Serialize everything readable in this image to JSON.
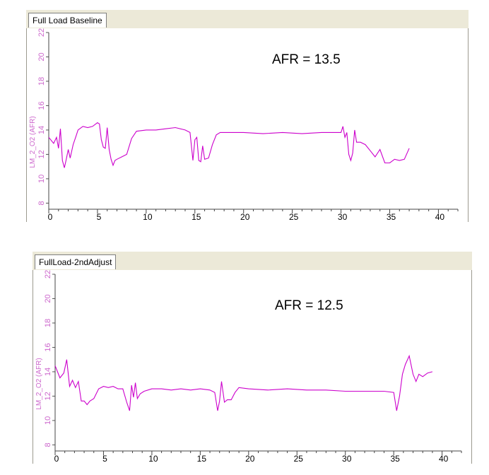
{
  "chart_data": [
    {
      "type": "line",
      "tab_label": "Full Load Baseline",
      "ylabel": "LM_2_O2 (AFR)",
      "annotation": "AFR = 13.5",
      "xlim": [
        0,
        42
      ],
      "ylim": [
        7.5,
        22
      ],
      "xticks": [
        "0",
        "5",
        "10",
        "15",
        "20",
        "25",
        "30",
        "35",
        "40"
      ],
      "yticks": [
        "8",
        "10",
        "12",
        "14",
        "16",
        "18",
        "20",
        "22"
      ],
      "grid": false,
      "line_color": "#cc00cc",
      "series": [
        {
          "x": [
            0,
            0.5,
            0.8,
            1.0,
            1.2,
            1.4,
            1.6,
            1.8,
            2.0,
            2.2,
            2.5,
            2.8,
            3.0,
            3.5,
            4.0,
            4.5,
            5.0,
            5.2,
            5.4,
            5.6,
            5.8,
            6.0,
            6.2,
            6.4,
            6.6,
            6.8,
            7.0,
            7.5,
            8.0,
            8.5,
            9.0,
            10.0,
            11.0,
            12.0,
            13.0,
            14.0,
            14.5,
            14.8,
            15.0,
            15.2,
            15.4,
            15.6,
            15.8,
            16.0,
            16.4,
            16.8,
            17.2,
            17.6,
            18.0,
            20.0,
            22.0,
            24.0,
            26.0,
            28.0,
            29.5,
            30.0,
            30.2,
            30.4,
            30.6,
            30.8,
            31.0,
            31.2,
            31.4,
            31.6,
            32.0,
            32.5,
            33.0,
            33.5,
            34.0,
            34.5,
            35.0,
            35.5,
            36.0,
            36.5,
            37.0
          ],
          "y": [
            13.4,
            12.9,
            13.4,
            12.5,
            14.1,
            11.5,
            10.9,
            11.6,
            12.4,
            11.7,
            12.8,
            13.5,
            14.0,
            14.3,
            14.2,
            14.3,
            14.6,
            14.5,
            13.2,
            12.6,
            12.5,
            14.2,
            12.4,
            11.6,
            11.1,
            11.5,
            11.6,
            11.8,
            12.0,
            13.3,
            13.9,
            14.0,
            14.0,
            14.1,
            14.2,
            14.0,
            13.8,
            11.5,
            13.2,
            13.4,
            11.5,
            11.4,
            12.7,
            11.6,
            11.7,
            12.8,
            13.6,
            13.8,
            13.8,
            13.8,
            13.7,
            13.8,
            13.7,
            13.8,
            13.8,
            13.8,
            14.3,
            13.4,
            13.8,
            12.0,
            11.5,
            12.1,
            14.0,
            13.0,
            13.0,
            12.8,
            12.3,
            11.8,
            12.4,
            11.3,
            11.3,
            11.6,
            11.5,
            11.6,
            12.5
          ]
        }
      ]
    },
    {
      "type": "line",
      "tab_label": "FullLoad-2ndAdjust",
      "ylabel": "LM_2_O2 (AFR)",
      "annotation": "AFR = 12.5",
      "xlim": [
        0,
        42
      ],
      "ylim": [
        7.5,
        22
      ],
      "xticks": [
        "0",
        "5",
        "10",
        "15",
        "20",
        "25",
        "30",
        "35",
        "40"
      ],
      "yticks": [
        "8",
        "10",
        "12",
        "14",
        "16",
        "18",
        "20",
        "22"
      ],
      "grid": false,
      "line_color": "#cc00cc",
      "series": [
        {
          "x": [
            0,
            0.5,
            0.9,
            1.2,
            1.5,
            1.8,
            2.1,
            2.4,
            2.7,
            3.0,
            3.3,
            3.6,
            4.0,
            4.5,
            5.0,
            5.5,
            6.0,
            6.5,
            7.0,
            7.4,
            7.7,
            7.9,
            8.1,
            8.3,
            8.5,
            8.8,
            9.2,
            10.0,
            11.0,
            12.0,
            13.0,
            14.0,
            15.0,
            16.0,
            16.5,
            16.8,
            17.0,
            17.2,
            17.5,
            17.8,
            18.2,
            18.6,
            19.0,
            20.0,
            22.0,
            24.0,
            26.0,
            28.0,
            30.0,
            32.0,
            34.0,
            35.0,
            35.3,
            35.6,
            35.9,
            36.2,
            36.6,
            37.0,
            37.3,
            37.6,
            38.0,
            38.5,
            39.0
          ],
          "y": [
            14.5,
            13.5,
            13.9,
            15.0,
            12.8,
            13.3,
            12.7,
            13.2,
            11.6,
            11.6,
            11.3,
            11.6,
            11.8,
            12.6,
            12.8,
            12.7,
            12.8,
            12.6,
            12.6,
            11.5,
            10.8,
            12.9,
            11.9,
            13.1,
            11.8,
            12.2,
            12.4,
            12.6,
            12.6,
            12.5,
            12.6,
            12.5,
            12.6,
            12.5,
            12.3,
            10.8,
            11.6,
            13.2,
            11.5,
            11.7,
            11.7,
            12.3,
            12.7,
            12.6,
            12.5,
            12.6,
            12.5,
            12.5,
            12.4,
            12.4,
            12.4,
            12.3,
            10.8,
            12.0,
            13.8,
            14.6,
            15.3,
            13.8,
            13.2,
            13.8,
            13.6,
            13.9,
            14.0
          ]
        }
      ]
    }
  ]
}
